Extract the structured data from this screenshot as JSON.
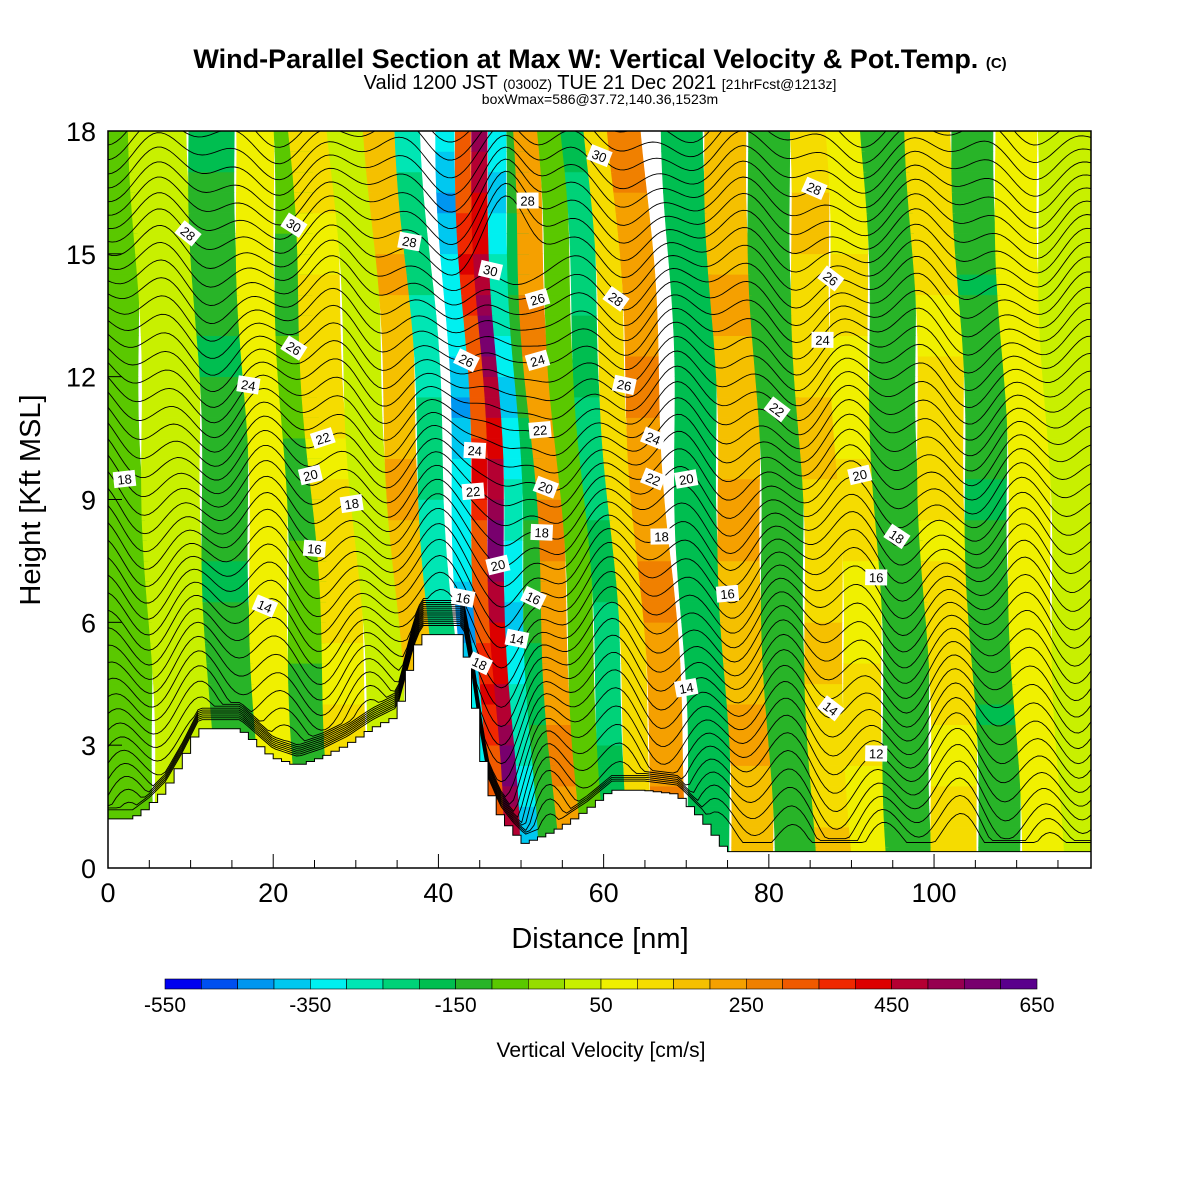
{
  "header": {
    "title": "Wind-Parallel Section at Max W: Vertical Velocity & Pot.Temp.",
    "copyright": "(C)",
    "subtitle_a": "Valid 1200 JST",
    "subtitle_b": "(0300Z)",
    "subtitle_c": "TUE 21 Dec 2021",
    "subtitle_d": "[21hrFcst@1213z]",
    "subtitle2": "boxWmax=586@37.72,140.36,1523m"
  },
  "chart_data": {
    "type": "heatmap",
    "xlabel": "Distance [nm]",
    "ylabel": "Height [Kft MSL]",
    "xlim": [
      0,
      119
    ],
    "ylim": [
      0,
      18
    ],
    "x_ticks": [
      0,
      20,
      40,
      60,
      80,
      100
    ],
    "y_ticks": [
      0,
      3,
      6,
      9,
      12,
      15,
      18
    ],
    "colorbar": {
      "label": "Vertical Velocity [cm/s]",
      "tick_labels": [
        "-550",
        "-350",
        "-150",
        "50",
        "250",
        "450",
        "650"
      ],
      "levels": [
        -550,
        -500,
        -450,
        -400,
        -350,
        -300,
        -250,
        -200,
        -150,
        -100,
        -50,
        0,
        50,
        100,
        150,
        200,
        250,
        300,
        350,
        400,
        450,
        500,
        550,
        600,
        650
      ],
      "colors": [
        "#0000f0",
        "#0050f0",
        "#0096f0",
        "#00c8f0",
        "#00f0f0",
        "#00e6b4",
        "#00d278",
        "#00be50",
        "#28b428",
        "#5ac800",
        "#96dc00",
        "#c8f000",
        "#f0f000",
        "#f5dc00",
        "#f5c000",
        "#f5a000",
        "#f08000",
        "#f05a00",
        "#f02800",
        "#dc0000",
        "#b40032",
        "#960050",
        "#78006e",
        "#5a008c"
      ]
    },
    "w_bands": [
      {
        "x": 2,
        "w": -100
      },
      {
        "x": 10,
        "w": 50
      },
      {
        "x": 16,
        "w": -160
      },
      {
        "x": 21,
        "w": 100
      },
      {
        "x": 25,
        "w": -120
      },
      {
        "x": 30,
        "w": 130
      },
      {
        "x": 35,
        "w": 20
      },
      {
        "x": 39,
        "w": 220
      },
      {
        "x": 42.5,
        "w": -300
      },
      {
        "x": 45,
        "w": -420
      },
      {
        "x": 47,
        "w": 420
      },
      {
        "x": 48.7,
        "w": 586
      },
      {
        "x": 50.8,
        "w": -380
      },
      {
        "x": 53,
        "w": -180
      },
      {
        "x": 56,
        "w": 280
      },
      {
        "x": 59,
        "w": -100
      },
      {
        "x": 62,
        "w": -250
      },
      {
        "x": 65,
        "w": 150
      },
      {
        "x": 68,
        "w": 280
      },
      {
        "x": 73,
        "w": -200
      },
      {
        "x": 78,
        "w": 230
      },
      {
        "x": 83,
        "w": -150
      },
      {
        "x": 88,
        "w": 170
      },
      {
        "x": 92,
        "w": 120
      },
      {
        "x": 97,
        "w": -150
      },
      {
        "x": 103,
        "w": 130
      },
      {
        "x": 108,
        "w": -160
      },
      {
        "x": 113,
        "w": 100
      },
      {
        "x": 118,
        "w": 40
      }
    ],
    "terrain": [
      [
        0,
        1.2
      ],
      [
        3,
        1.2
      ],
      [
        5,
        1.5
      ],
      [
        7,
        1.9
      ],
      [
        9,
        2.6
      ],
      [
        11,
        3.4
      ],
      [
        16,
        3.4
      ],
      [
        20,
        2.7
      ],
      [
        23,
        2.5
      ],
      [
        26,
        2.7
      ],
      [
        29,
        3.0
      ],
      [
        32,
        3.4
      ],
      [
        35,
        3.7
      ],
      [
        37,
        5.2
      ],
      [
        38,
        5.7
      ],
      [
        43,
        5.7
      ],
      [
        44,
        4.6
      ],
      [
        45,
        3.2
      ],
      [
        46,
        2.0
      ],
      [
        47.5,
        1.3
      ],
      [
        49,
        0.9
      ],
      [
        50.5,
        0.6
      ],
      [
        53,
        0.8
      ],
      [
        55,
        1.0
      ],
      [
        58,
        1.4
      ],
      [
        61,
        1.9
      ],
      [
        65,
        1.9
      ],
      [
        69,
        1.8
      ],
      [
        72,
        1.2
      ],
      [
        75,
        0.4
      ],
      [
        119,
        0.4
      ]
    ],
    "theta_contour_values": [
      "12",
      "14",
      "14",
      "14",
      "14",
      "14",
      "16",
      "16",
      "16",
      "16",
      "18",
      "18",
      "18",
      "18",
      "18",
      "18",
      "18",
      "20",
      "20",
      "20",
      "20",
      "20",
      "22",
      "22",
      "22",
      "22",
      "22",
      "24",
      "24",
      "24",
      "24",
      "24",
      "26",
      "26",
      "26",
      "26",
      "26",
      "28",
      "28",
      "28",
      "28",
      "28",
      "30",
      "30",
      "30",
      "30"
    ],
    "theta_labels": [
      {
        "x": 2,
        "y": 9.5,
        "text": "18"
      },
      {
        "x": 9.7,
        "y": 15.5,
        "text": "28"
      },
      {
        "x": 22.5,
        "y": 15.7,
        "text": "30"
      },
      {
        "x": 22.5,
        "y": 12.7,
        "text": "26"
      },
      {
        "x": 17,
        "y": 11.8,
        "text": "24"
      },
      {
        "x": 26,
        "y": 10.5,
        "text": "22"
      },
      {
        "x": 24.5,
        "y": 9.6,
        "text": "20"
      },
      {
        "x": 29.5,
        "y": 8.9,
        "text": "18"
      },
      {
        "x": 25,
        "y": 7.8,
        "text": "16"
      },
      {
        "x": 19,
        "y": 6.4,
        "text": "14"
      },
      {
        "x": 36.5,
        "y": 15.3,
        "text": "28"
      },
      {
        "x": 50.8,
        "y": 16.3,
        "text": "28"
      },
      {
        "x": 46.3,
        "y": 14.6,
        "text": "30"
      },
      {
        "x": 52,
        "y": 13.9,
        "text": "26"
      },
      {
        "x": 43.4,
        "y": 12.4,
        "text": "26"
      },
      {
        "x": 52,
        "y": 12.4,
        "text": "24"
      },
      {
        "x": 52.3,
        "y": 10.7,
        "text": "22"
      },
      {
        "x": 44.4,
        "y": 10.2,
        "text": "24"
      },
      {
        "x": 44.2,
        "y": 9.2,
        "text": "22"
      },
      {
        "x": 53,
        "y": 9.3,
        "text": "20"
      },
      {
        "x": 52.5,
        "y": 8.2,
        "text": "18"
      },
      {
        "x": 47.2,
        "y": 7.4,
        "text": "20"
      },
      {
        "x": 43,
        "y": 6.6,
        "text": "16"
      },
      {
        "x": 51.5,
        "y": 6.6,
        "text": "16"
      },
      {
        "x": 49.5,
        "y": 5.6,
        "text": "14"
      },
      {
        "x": 45,
        "y": 5.0,
        "text": "18"
      },
      {
        "x": 59.5,
        "y": 17.4,
        "text": "30"
      },
      {
        "x": 61.5,
        "y": 13.9,
        "text": "28"
      },
      {
        "x": 62.5,
        "y": 11.8,
        "text": "26"
      },
      {
        "x": 66,
        "y": 10.5,
        "text": "24"
      },
      {
        "x": 66,
        "y": 9.5,
        "text": "22"
      },
      {
        "x": 70,
        "y": 9.5,
        "text": "20"
      },
      {
        "x": 67,
        "y": 8.1,
        "text": "18"
      },
      {
        "x": 75,
        "y": 6.7,
        "text": "16"
      },
      {
        "x": 70,
        "y": 4.4,
        "text": "14"
      },
      {
        "x": 85.5,
        "y": 16.6,
        "text": "28"
      },
      {
        "x": 87.5,
        "y": 14.4,
        "text": "26"
      },
      {
        "x": 86.5,
        "y": 12.9,
        "text": "24"
      },
      {
        "x": 81,
        "y": 11.2,
        "text": "22"
      },
      {
        "x": 91,
        "y": 9.6,
        "text": "20"
      },
      {
        "x": 95.5,
        "y": 8.1,
        "text": "18"
      },
      {
        "x": 93,
        "y": 7.1,
        "text": "16"
      },
      {
        "x": 87.5,
        "y": 3.9,
        "text": "14"
      },
      {
        "x": 93,
        "y": 2.8,
        "text": "12"
      }
    ]
  }
}
